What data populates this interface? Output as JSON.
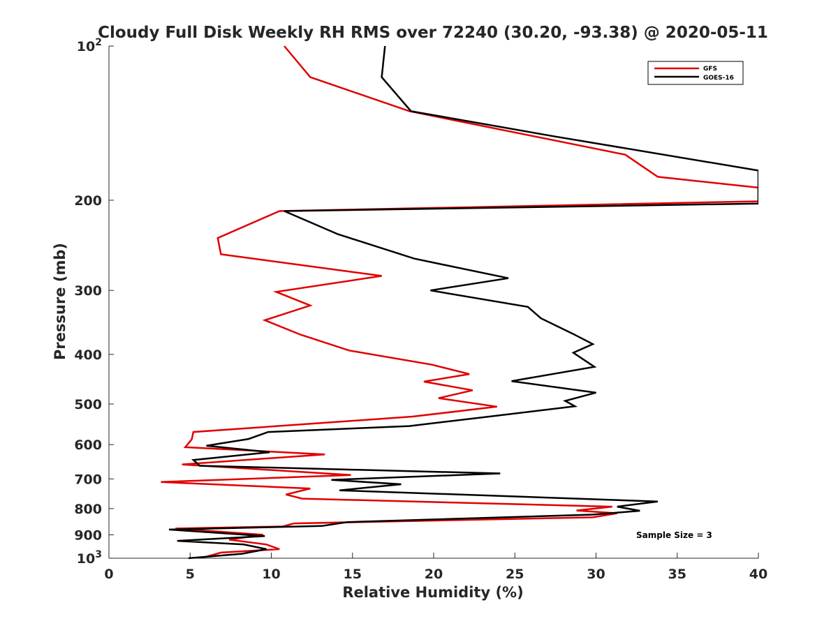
{
  "chart_data": {
    "type": "line",
    "title": "Cloudy Full Disk Weekly RH RMS over 72240 (30.20, -93.38) @ 2020-05-11",
    "xlabel": "Relative Humidity (%)",
    "ylabel": "Pressure (mb)",
    "xlim": [
      0,
      40
    ],
    "ylim": [
      100,
      1000
    ],
    "yscale": "log",
    "y_reversed": true,
    "xticks": [
      0,
      5,
      10,
      15,
      20,
      25,
      30,
      35,
      40
    ],
    "yticks": [
      {
        "value": 100,
        "label": "10",
        "sup": "2"
      },
      {
        "value": 200,
        "label": "200",
        "sup": ""
      },
      {
        "value": 300,
        "label": "300",
        "sup": ""
      },
      {
        "value": 400,
        "label": "400",
        "sup": ""
      },
      {
        "value": 500,
        "label": "500",
        "sup": ""
      },
      {
        "value": 600,
        "label": "600",
        "sup": ""
      },
      {
        "value": 700,
        "label": "700",
        "sup": ""
      },
      {
        "value": 800,
        "label": "800",
        "sup": ""
      },
      {
        "value": 900,
        "label": "900",
        "sup": ""
      },
      {
        "value": 1000,
        "label": "10",
        "sup": "3"
      }
    ],
    "legend_position": "top-right",
    "annotation": "Sample Size = 3",
    "series": [
      {
        "name": "GFS",
        "color": "#e00000",
        "points": [
          [
            10.8,
            100
          ],
          [
            12.4,
            115
          ],
          [
            18.5,
            134
          ],
          [
            31.8,
            163
          ],
          [
            33.8,
            180
          ],
          [
            40,
            189
          ],
          [
            40,
            201
          ],
          [
            10.5,
            210
          ],
          [
            6.7,
            237
          ],
          [
            6.9,
            255
          ],
          [
            16.8,
            281
          ],
          [
            10.3,
            302
          ],
          [
            12.4,
            321
          ],
          [
            9.6,
            343
          ],
          [
            11.8,
            366
          ],
          [
            14.8,
            393
          ],
          [
            19.9,
            419
          ],
          [
            22.2,
            437
          ],
          [
            19.4,
            452
          ],
          [
            22.4,
            470
          ],
          [
            20.3,
            487
          ],
          [
            23.9,
            506
          ],
          [
            18.7,
            529
          ],
          [
            5.2,
            567
          ],
          [
            5.1,
            586
          ],
          [
            4.7,
            607
          ],
          [
            13.3,
            627
          ],
          [
            4.5,
            656
          ],
          [
            14.9,
            688
          ],
          [
            3.2,
            710
          ],
          [
            12.4,
            731
          ],
          [
            10.9,
            751
          ],
          [
            11.9,
            765
          ],
          [
            31,
            793
          ],
          [
            28.8,
            807
          ],
          [
            31.3,
            817
          ],
          [
            29.8,
            832
          ],
          [
            11.4,
            855
          ],
          [
            10.7,
            867
          ],
          [
            4.1,
            875
          ],
          [
            9.5,
            900
          ],
          [
            7.4,
            920
          ],
          [
            9.7,
            940
          ],
          [
            10.5,
            960
          ],
          [
            6.9,
            975
          ],
          [
            5.9,
            995
          ]
        ]
      },
      {
        "name": "GOES-16",
        "color": "#000000",
        "points": [
          [
            17,
            100
          ],
          [
            16.8,
            115
          ],
          [
            18.6,
            134
          ],
          [
            27.4,
            150
          ],
          [
            40,
            175
          ],
          [
            40,
            203
          ],
          [
            10.8,
            210
          ],
          [
            14.1,
            233
          ],
          [
            18.8,
            260
          ],
          [
            24.6,
            284
          ],
          [
            19.8,
            300
          ],
          [
            25.8,
            323
          ],
          [
            26.6,
            340
          ],
          [
            28.6,
            365
          ],
          [
            29.8,
            382
          ],
          [
            28.6,
            397
          ],
          [
            29.9,
            423
          ],
          [
            24.8,
            451
          ],
          [
            30,
            475
          ],
          [
            28.1,
            493
          ],
          [
            28.7,
            505
          ],
          [
            23.2,
            530
          ],
          [
            18.5,
            552
          ],
          [
            9.8,
            567
          ],
          [
            8.6,
            585
          ],
          [
            6,
            603
          ],
          [
            9.9,
            621
          ],
          [
            5.2,
            643
          ],
          [
            5.6,
            660
          ],
          [
            24.1,
            683
          ],
          [
            13.7,
            703
          ],
          [
            18,
            717
          ],
          [
            14.2,
            737
          ],
          [
            33.8,
            775
          ],
          [
            31.3,
            793
          ],
          [
            32.7,
            808
          ],
          [
            29.8,
            822
          ],
          [
            14.7,
            850
          ],
          [
            13.1,
            865
          ],
          [
            3.7,
            879
          ],
          [
            9.6,
            905
          ],
          [
            4.2,
            925
          ],
          [
            8.3,
            940
          ],
          [
            9.7,
            960
          ],
          [
            8.2,
            980
          ],
          [
            4.9,
            1000
          ]
        ]
      }
    ]
  }
}
